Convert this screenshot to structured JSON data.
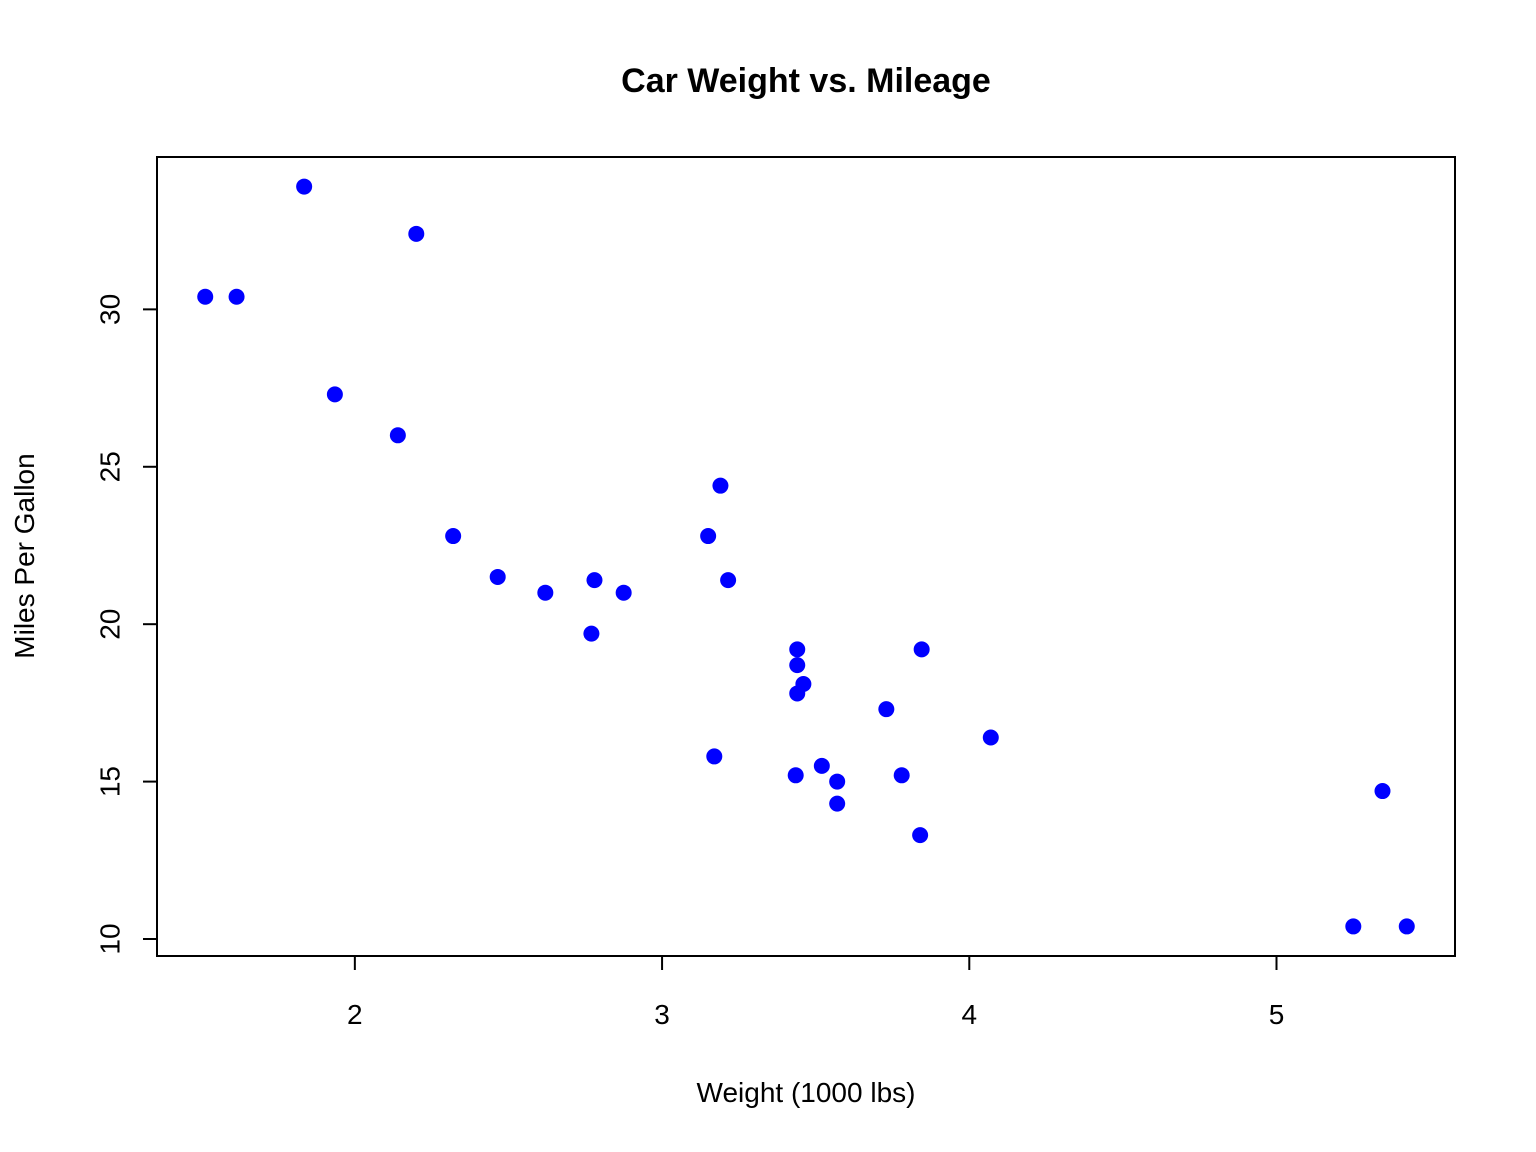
{
  "colors": {
    "point": "#0000ff",
    "axis": "#000000",
    "background": "#ffffff"
  },
  "chart_data": {
    "type": "scatter",
    "title": "Car Weight vs. Mileage",
    "xlabel": "Weight (1000 lbs)",
    "ylabel": "Miles Per Gallon",
    "xlim": [
      1.356,
      5.581
    ],
    "ylim": [
      9.46,
      34.84
    ],
    "xticks": [
      2,
      3,
      4,
      5
    ],
    "yticks": [
      10,
      15,
      20,
      25,
      30
    ],
    "grid": false,
    "legend": "none",
    "series": [
      {
        "x": [
          2.62,
          2.875,
          2.32,
          3.215,
          3.44,
          3.46,
          3.57,
          3.19,
          3.15,
          3.44,
          3.44,
          4.07,
          3.73,
          3.78,
          5.25,
          5.424,
          5.345,
          2.2,
          1.615,
          1.835,
          2.465,
          3.52,
          3.435,
          3.84,
          3.845,
          1.935,
          2.14,
          1.513,
          3.17,
          2.77,
          3.57,
          2.78
        ],
        "y": [
          21.0,
          21.0,
          22.8,
          21.4,
          18.7,
          18.1,
          14.3,
          24.4,
          22.8,
          19.2,
          17.8,
          16.4,
          17.3,
          15.2,
          10.4,
          10.4,
          14.7,
          32.4,
          30.4,
          33.9,
          21.5,
          15.5,
          15.2,
          13.3,
          19.2,
          27.3,
          26.0,
          30.4,
          15.8,
          19.7,
          15.0,
          21.4
        ]
      }
    ]
  }
}
